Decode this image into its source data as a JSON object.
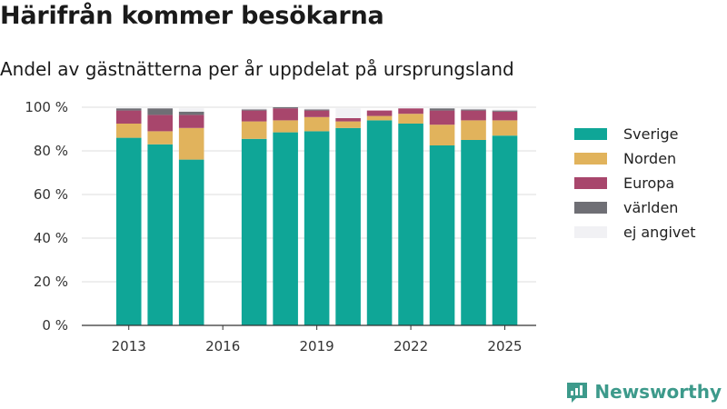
{
  "title": "Härifrån kommer besökarna",
  "subtitle": "Andel av gästnätterna per år uppdelat på ursprungsland",
  "brand": {
    "name": "Newsworthy",
    "icon": "newsworthy-logo-icon"
  },
  "chart_data": {
    "type": "bar",
    "stacked": true,
    "x": [
      2013,
      2014,
      2015,
      2017,
      2018,
      2019,
      2020,
      2021,
      2022,
      2023,
      2024,
      2025
    ],
    "xticks": [
      "2013",
      "2016",
      "2019",
      "2022",
      "2025"
    ],
    "xtick_values": [
      2013,
      2016,
      2019,
      2022,
      2025
    ],
    "xlim": [
      2011.5,
      2026.0
    ],
    "ylim": [
      0,
      100
    ],
    "yticks": [
      "0 %",
      "20 %",
      "40 %",
      "60 %",
      "80 %",
      "100 %"
    ],
    "ytick_values": [
      0,
      20,
      40,
      60,
      80,
      100
    ],
    "grid": true,
    "legend_position": "right",
    "series": [
      {
        "name": "Sverige",
        "color": "#0fa697",
        "values": [
          86,
          83,
          76,
          85.5,
          88.5,
          89,
          90.5,
          94,
          92.5,
          82.5,
          85,
          87
        ]
      },
      {
        "name": "Norden",
        "color": "#e1b35c",
        "values": [
          6.5,
          6,
          14.5,
          8,
          5.5,
          6.5,
          3,
          2,
          4.5,
          9.5,
          9,
          7
        ]
      },
      {
        "name": "Europa",
        "color": "#a8466c",
        "values": [
          6,
          7.5,
          6,
          5,
          5.5,
          3,
          1.5,
          2.5,
          2.5,
          6.5,
          4.5,
          4
        ]
      },
      {
        "name": "världen",
        "color": "#6f6f75",
        "values": [
          1,
          3,
          1.5,
          0.5,
          0.5,
          0.5,
          0,
          0,
          0,
          1,
          0.5,
          0.5
        ]
      },
      {
        "name": "ej angivet",
        "color": "#f1f1f4",
        "values": [
          0.5,
          0.5,
          1.5,
          0.5,
          0,
          0.5,
          4.5,
          0,
          0.5,
          0.5,
          0.5,
          0.5
        ]
      }
    ]
  }
}
